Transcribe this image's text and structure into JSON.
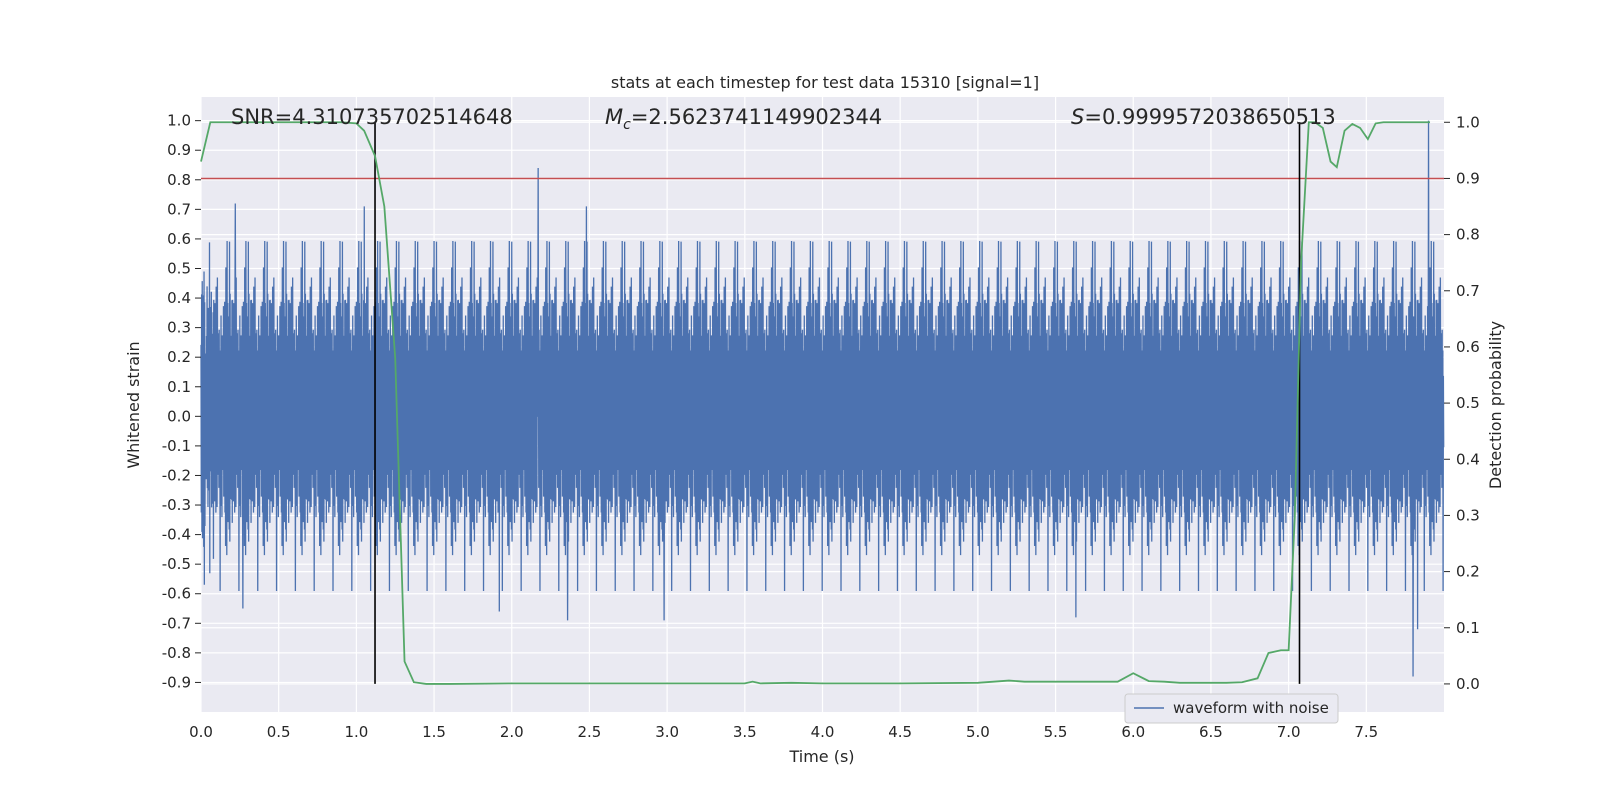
{
  "chart_data": {
    "type": "line",
    "title": "stats at each timestep for test data 15310 [signal=1]",
    "xlabel": "Time (s)",
    "ylabel_left": "Whitened strain",
    "ylabel_right": "Detection probability",
    "xlim": [
      0.0,
      8.0
    ],
    "ylim_left": [
      -1.0,
      1.08
    ],
    "ylim_right": [
      -0.05,
      1.045
    ],
    "x_ticks": [
      "0.0",
      "0.5",
      "1.0",
      "1.5",
      "2.0",
      "2.5",
      "3.0",
      "3.5",
      "4.0",
      "4.5",
      "5.0",
      "5.5",
      "6.0",
      "6.5",
      "7.0",
      "7.5"
    ],
    "y_ticks_left": [
      "-0.9",
      "-0.8",
      "-0.7",
      "-0.6",
      "-0.5",
      "-0.4",
      "-0.3",
      "-0.2",
      "-0.1",
      "0.0",
      "0.1",
      "0.2",
      "0.3",
      "0.4",
      "0.5",
      "0.6",
      "0.7",
      "0.8",
      "0.9",
      "1.0"
    ],
    "y_ticks_right": [
      "0.0",
      "0.1",
      "0.2",
      "0.3",
      "0.4",
      "0.5",
      "0.6",
      "0.7",
      "0.8",
      "0.9",
      "1.0"
    ],
    "grid": true,
    "legend": {
      "position": "lower-right",
      "label": "waveform with noise"
    },
    "annotations": {
      "snr": "SNR=4.310735702514648",
      "mc_symbol": "M",
      "mc_sub": "c",
      "mc_value": "=2.5623741149902344",
      "s_symbol": "S",
      "s_value": "=0.9999572038650513"
    },
    "threshold": {
      "axis": "right",
      "value": 0.9,
      "color": "#c44e52"
    },
    "vertical_markers": [
      1.12,
      7.07
    ],
    "waveform": {
      "name": "waveform with noise",
      "axis": "left",
      "color": "#4c72b0",
      "points": 4096,
      "core_range": [
        -0.28,
        0.28
      ],
      "peaks": [
        {
          "x": 0.22,
          "y": 0.72
        },
        {
          "x": 1.05,
          "y": 0.71
        },
        {
          "x": 2.17,
          "y": 0.84
        },
        {
          "x": 2.48,
          "y": 0.71
        },
        {
          "x": 7.9,
          "y": 1.0
        },
        {
          "x": 0.27,
          "y": -0.65
        },
        {
          "x": 2.36,
          "y": -0.69
        },
        {
          "x": 2.98,
          "y": -0.69
        },
        {
          "x": 5.63,
          "y": -0.68
        },
        {
          "x": 7.8,
          "y": -0.88
        },
        {
          "x": 7.83,
          "y": -0.72
        },
        {
          "x": 1.92,
          "y": -0.66
        }
      ]
    },
    "probability": {
      "axis": "right",
      "color": "#55a868",
      "x": [
        0.0,
        0.06,
        0.12,
        0.2,
        0.3,
        0.4,
        0.5,
        0.6,
        0.7,
        0.8,
        0.9,
        1.0,
        1.05,
        1.12,
        1.18,
        1.25,
        1.31,
        1.37,
        1.45,
        1.6,
        2.0,
        2.5,
        3.0,
        3.5,
        3.55,
        3.6,
        3.8,
        4.0,
        4.5,
        5.0,
        5.1,
        5.2,
        5.3,
        5.9,
        6.0,
        6.1,
        6.2,
        6.3,
        6.5,
        6.6,
        6.7,
        6.8,
        6.87,
        6.95,
        7.0,
        7.04,
        7.08,
        7.13,
        7.17,
        7.22,
        7.27,
        7.31,
        7.36,
        7.41,
        7.46,
        7.51,
        7.56,
        7.61,
        7.7,
        7.8,
        7.91
      ],
      "y": [
        0.93,
        1.0,
        1.0,
        1.0,
        1.0,
        1.0,
        1.0,
        1.0,
        1.0,
        1.0,
        1.0,
        0.998,
        0.985,
        0.94,
        0.85,
        0.58,
        0.04,
        0.003,
        0.0,
        0.0,
        0.001,
        0.001,
        0.001,
        0.001,
        0.004,
        0.001,
        0.002,
        0.001,
        0.001,
        0.002,
        0.004,
        0.006,
        0.004,
        0.004,
        0.019,
        0.005,
        0.004,
        0.002,
        0.002,
        0.002,
        0.003,
        0.01,
        0.055,
        0.06,
        0.06,
        0.3,
        0.75,
        1.0,
        1.0,
        0.99,
        0.93,
        0.92,
        0.985,
        0.997,
        0.99,
        0.97,
        0.998,
        1.0,
        1.0,
        1.0,
        1.0
      ]
    }
  }
}
